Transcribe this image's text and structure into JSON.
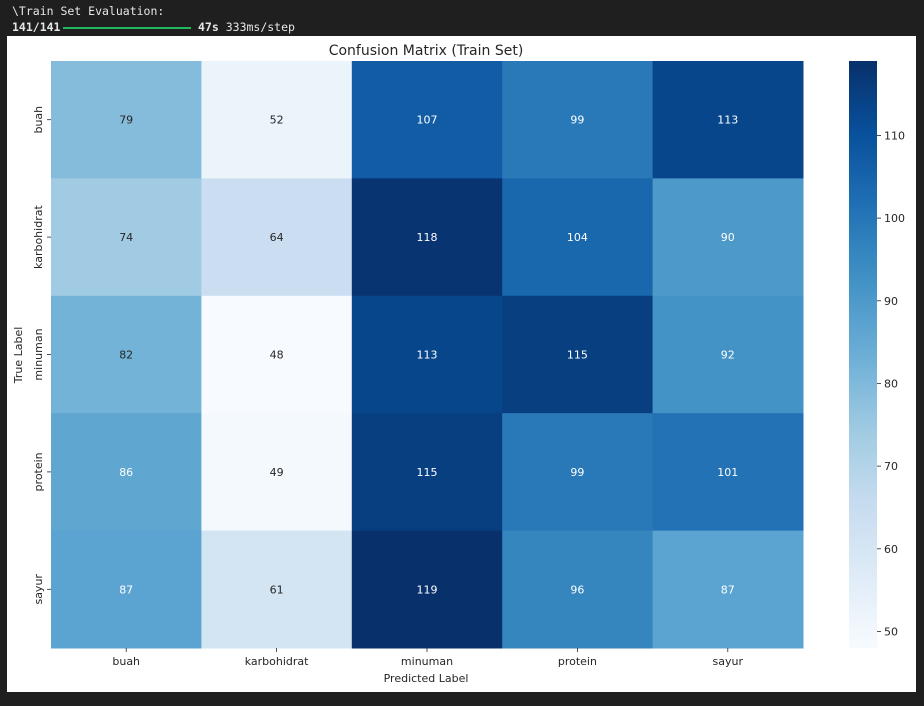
{
  "console": {
    "line1": "\\Train Set Evaluation:",
    "steps": "141/141",
    "progress": 1.0,
    "time": "47s",
    "per_step": "333ms/step"
  },
  "chart_data": {
    "type": "heatmap",
    "title": "Confusion Matrix (Train Set)",
    "xlabel": "Predicted Label",
    "ylabel": "True Label",
    "x_categories": [
      "buah",
      "karbohidrat",
      "minuman",
      "protein",
      "sayur"
    ],
    "y_categories": [
      "buah",
      "karbohidrat",
      "minuman",
      "protein",
      "sayur"
    ],
    "values": [
      [
        79,
        52,
        107,
        99,
        113
      ],
      [
        74,
        64,
        118,
        104,
        90
      ],
      [
        82,
        48,
        113,
        115,
        92
      ],
      [
        86,
        49,
        115,
        99,
        101
      ],
      [
        87,
        61,
        119,
        96,
        87
      ]
    ],
    "colormap": "Blues",
    "vmin": 48,
    "vmax": 119,
    "colorbar_ticks": [
      50,
      60,
      70,
      80,
      90,
      100,
      110
    ],
    "colors": {
      "low": "#f7fbff",
      "high": "#08306b",
      "label_dark": "#262626",
      "label_light": "#ffffff"
    }
  }
}
